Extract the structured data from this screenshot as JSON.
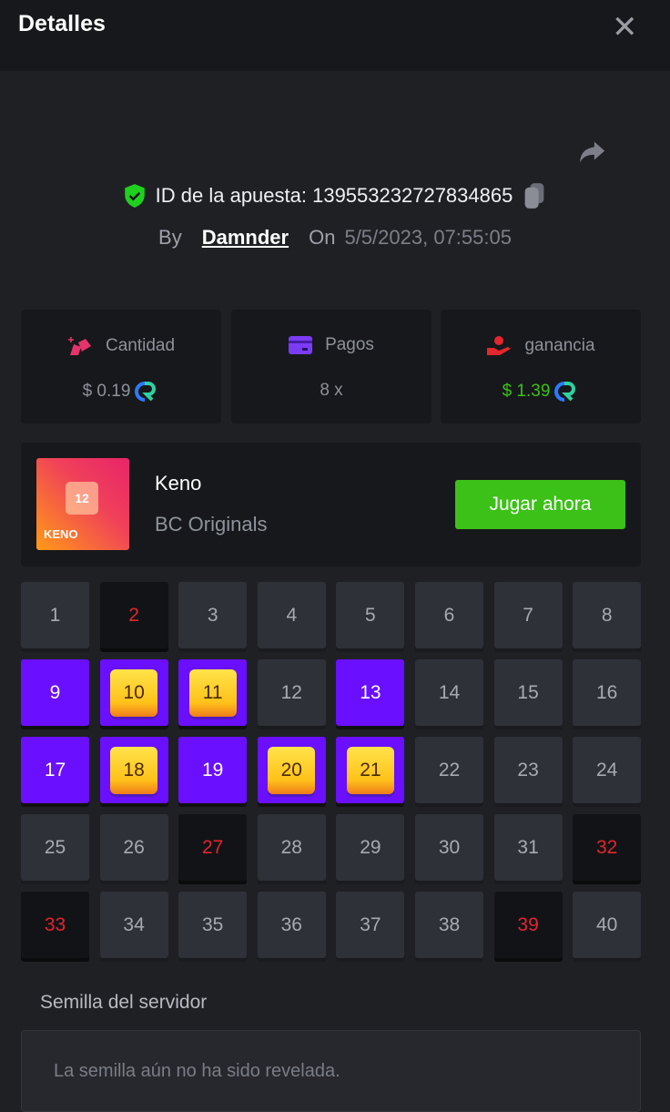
{
  "header": {
    "title": "Detalles",
    "close_icon": "close-icon"
  },
  "bet": {
    "id_label": "ID de la apuesta: 139553232727834865",
    "by_label": "By",
    "user": "Damnder",
    "on_label": "On",
    "date": "5/5/2023, 07:55:05"
  },
  "stats": [
    {
      "label": "Cantidad",
      "value": "$ 0.19",
      "icon": "bag-icon",
      "value_color": "#8e919a"
    },
    {
      "label": "Pagos",
      "value": "8 x",
      "icon": "card-icon"
    },
    {
      "label": "ganancia",
      "value": "$ 1.39",
      "icon": "hand-coin-icon",
      "value_color": "#3bc117"
    }
  ],
  "game": {
    "name": "Keno",
    "provider": "BC Originals",
    "thumb_text": "KENO",
    "thumb_number": "12",
    "play_label": "Jugar ahora"
  },
  "grid": {
    "numbers": [
      "1",
      "2",
      "3",
      "4",
      "5",
      "6",
      "7",
      "8",
      "9",
      "10",
      "11",
      "12",
      "13",
      "14",
      "15",
      "16",
      "17",
      "18",
      "19",
      "20",
      "21",
      "22",
      "23",
      "24",
      "25",
      "26",
      "27",
      "28",
      "29",
      "30",
      "31",
      "32",
      "33",
      "34",
      "35",
      "36",
      "37",
      "38",
      "39",
      "40"
    ],
    "selected": [
      9,
      13,
      17,
      19
    ],
    "hits": [
      10,
      11,
      18,
      20,
      21
    ],
    "drawn_unselected": [
      2,
      27,
      32,
      33,
      39
    ]
  },
  "seed": {
    "label": "Semilla del servidor",
    "value": "La semilla aún no ha sido revelada."
  },
  "colors": {
    "accent_purple": "#6a0fff",
    "play_green": "#3bc117",
    "miss_red": "#e2252f"
  }
}
